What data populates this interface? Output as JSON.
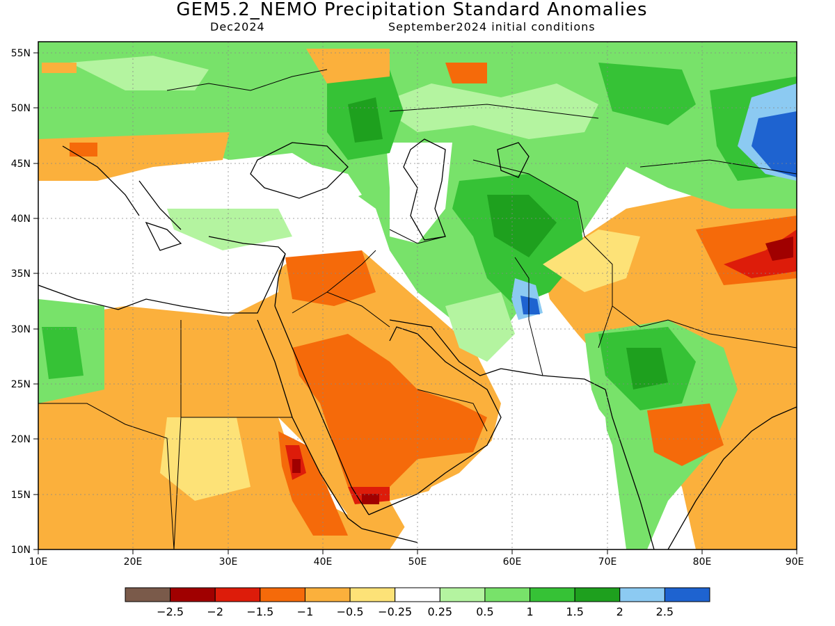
{
  "title": "GEM5.2_NEMO Precipitation Standard Anomalies",
  "subtitle_left": "Dec2024",
  "subtitle_right": "September2024 initial conditions",
  "map": {
    "lon_range": [
      10,
      90
    ],
    "lat_range": [
      10,
      56
    ],
    "lon_ticks": [
      "10E",
      "20E",
      "30E",
      "40E",
      "50E",
      "60E",
      "70E",
      "80E",
      "90E"
    ],
    "lat_ticks": [
      "10N",
      "15N",
      "20N",
      "25N",
      "30N",
      "35N",
      "40N",
      "45N",
      "50N",
      "55N"
    ]
  },
  "legend": {
    "colors": [
      "#7a5a4a",
      "#a00000",
      "#dd1c0a",
      "#f56a0a",
      "#fbb03c",
      "#fde277",
      "#ffffff",
      "#b4f4a0",
      "#78e26a",
      "#36c236",
      "#1ea01e",
      "#8ccaf2",
      "#1e63d0"
    ],
    "labels": [
      "−2.5",
      "−2",
      "−1.5",
      "−1",
      "−0.5",
      "−0.25",
      "0.25",
      "0.5",
      "1",
      "1.5",
      "2",
      "2.5"
    ]
  },
  "palette": {
    "strong_dry": "#dd1c0a",
    "dry": "#f56a0a",
    "mod_dry": "#fbb03c",
    "light_dry": "#fde277",
    "light_wet": "#b4f4a0",
    "wet": "#78e26a",
    "mod_wet": "#36c236",
    "strong_wet": "#1ea01e",
    "very_wet": "#8ccaf2",
    "extreme_wet": "#1e63d0"
  }
}
